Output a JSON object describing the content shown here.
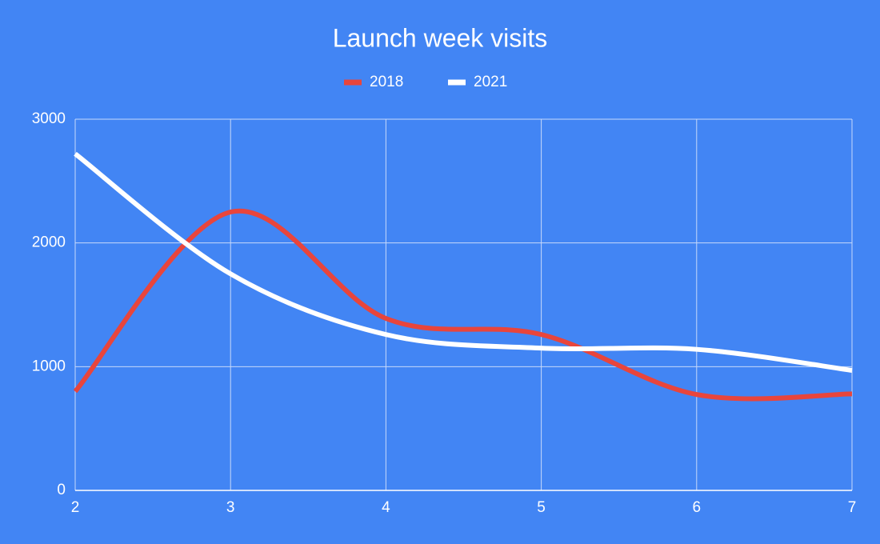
{
  "chart_data": {
    "type": "line",
    "title": "Launch week visits",
    "x": [
      2,
      3,
      4,
      5,
      6,
      7
    ],
    "series": [
      {
        "name": "2018",
        "color": "#e8453c",
        "values": [
          800,
          2250,
          1390,
          1260,
          775,
          780
        ]
      },
      {
        "name": "2021",
        "color": "#ffffff",
        "values": [
          2720,
          1750,
          1260,
          1150,
          1140,
          970
        ]
      }
    ],
    "xlim": [
      2,
      7
    ],
    "xticks": [
      2,
      3,
      4,
      5,
      6,
      7
    ],
    "ylim": [
      0,
      3000
    ],
    "yticks": [
      0,
      1000,
      2000,
      3000
    ],
    "grid": true,
    "smooth": true,
    "legend": "top"
  }
}
